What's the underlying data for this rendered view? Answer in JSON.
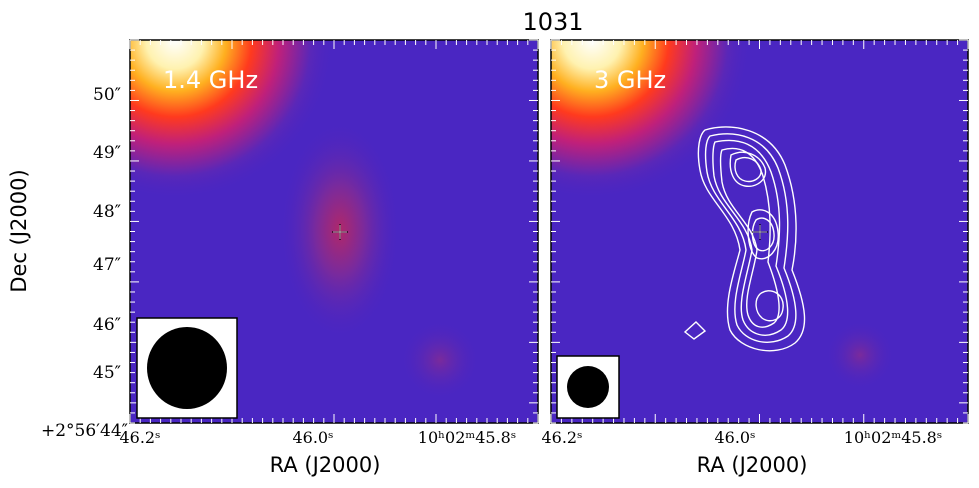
{
  "chart_data": {
    "type": "heatmap",
    "title": "1031",
    "ylabel": "Dec (J2000)",
    "xlabel": "RA (J2000)",
    "panels": [
      {
        "band_label": "1.4 GHz",
        "x_tick_labels": [
          "46.2ˢ",
          "46.0ˢ",
          "10ʰ02ᵐ45.8ˢ"
        ],
        "y_tick_labels": [
          "+2°56′44″",
          "45″",
          "46″",
          "47″",
          "48″",
          "49″",
          "50″"
        ],
        "contours": false,
        "beam": "large"
      },
      {
        "band_label": "3 GHz",
        "x_tick_labels": [
          "46.2ˢ",
          "46.0ˢ",
          "10ʰ02ᵐ45.8ˢ"
        ],
        "contours": true,
        "contour_levels": 6,
        "beam": "small"
      }
    ],
    "marker": "+",
    "colormap": "gnuplot2-like (purple → red → yellow → white)",
    "background_color": "#4a26c2",
    "contour_color": "#ffffff"
  }
}
